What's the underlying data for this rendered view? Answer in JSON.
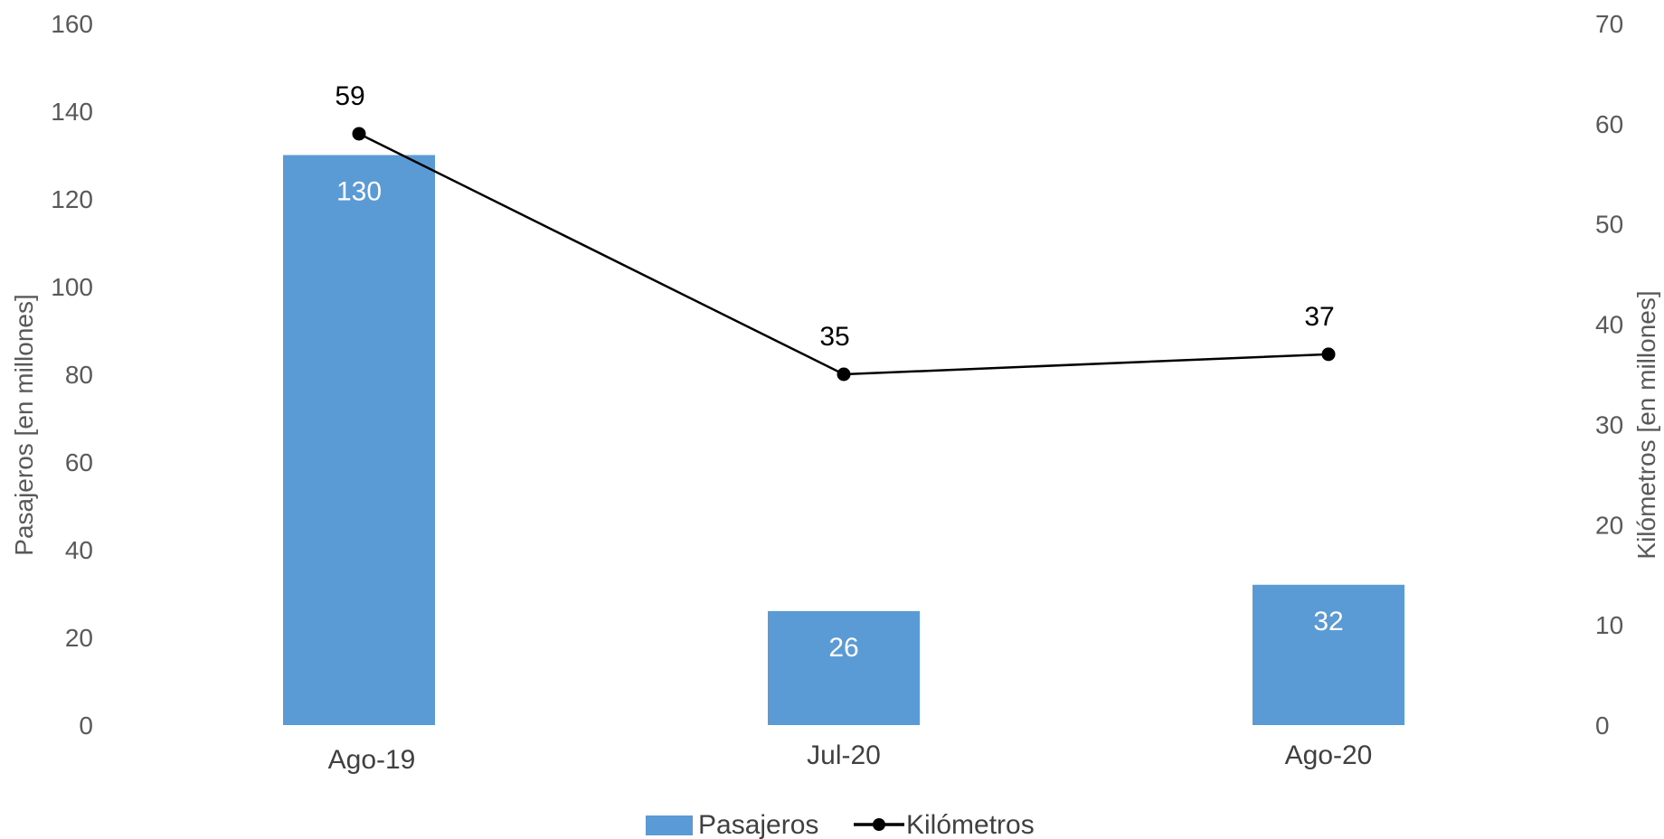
{
  "chart_data": {
    "type": "bar",
    "categories": [
      "Ago-19",
      "Jul-20",
      "Ago-20"
    ],
    "series": [
      {
        "name": "Pasajeros",
        "type": "bar",
        "axis": "left",
        "color": "#5B9BD5",
        "values": [
          130,
          26,
          32
        ],
        "labels": [
          "130",
          "26",
          "32"
        ]
      },
      {
        "name": "Kilómetros",
        "type": "line",
        "axis": "right",
        "color": "#000000",
        "values": [
          59,
          35,
          37
        ],
        "labels": [
          "59",
          "35",
          "37"
        ]
      }
    ],
    "ylabel": "Pasajeros [en millones]",
    "ylabel_right": "Kilómetros [en millones]",
    "ylim": [
      0,
      160
    ],
    "ylim_right": [
      0,
      70
    ],
    "yticks": [
      "0",
      "20",
      "40",
      "60",
      "80",
      "100",
      "120",
      "140",
      "160"
    ],
    "yticks_right": [
      "0",
      "10",
      "20",
      "30",
      "40",
      "50",
      "60",
      "70"
    ],
    "grid": false,
    "legend_position": "bottom"
  }
}
